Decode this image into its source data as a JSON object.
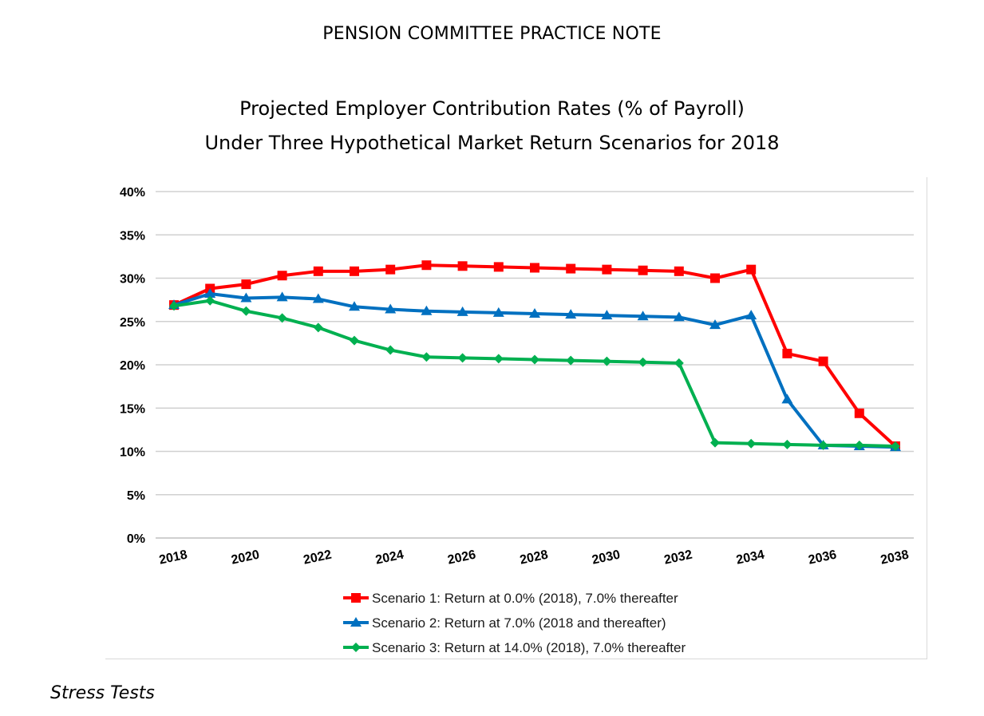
{
  "document": {
    "header": "PENSION COMMITTEE PRACTICE NOTE",
    "caption": "Stress Tests"
  },
  "chart_data": {
    "type": "line",
    "title_lines": [
      "Projected Employer Contribution Rates (% of Payroll)",
      "Under Three Hypothetical Market Return Scenarios for 2018"
    ],
    "xlabel": "",
    "ylabel": "",
    "x": [
      2018,
      2019,
      2020,
      2021,
      2022,
      2023,
      2024,
      2025,
      2026,
      2027,
      2028,
      2029,
      2030,
      2031,
      2032,
      2033,
      2034,
      2035,
      2036,
      2037,
      2038
    ],
    "xlim": [
      2018,
      2038
    ],
    "x_ticks": [
      2018,
      2020,
      2022,
      2024,
      2026,
      2028,
      2030,
      2032,
      2034,
      2036,
      2038
    ],
    "x_tick_labels": [
      "2018",
      "2020",
      "2022",
      "2024",
      "2026",
      "2028",
      "2030",
      "2032",
      "2034",
      "2036",
      "2038"
    ],
    "ylim": [
      0,
      40
    ],
    "y_ticks": [
      0,
      5,
      10,
      15,
      20,
      25,
      30,
      35,
      40
    ],
    "y_tick_labels": [
      "0%",
      "5%",
      "10%",
      "15%",
      "20%",
      "25%",
      "30%",
      "35%",
      "40%"
    ],
    "grid": "horizontal",
    "legend_position": "bottom-center",
    "series": [
      {
        "name": "Scenario 1: Return at 0.0% (2018), 7.0% thereafter",
        "color": "#ff0000",
        "marker": "square",
        "values": [
          26.9,
          28.8,
          29.3,
          30.3,
          30.8,
          30.8,
          31.0,
          31.5,
          31.4,
          31.3,
          31.2,
          31.1,
          31.0,
          30.9,
          30.8,
          30.0,
          31.0,
          21.3,
          20.4,
          14.4,
          10.6
        ]
      },
      {
        "name": "Scenario 2: Return at 7.0% (2018 and thereafter)",
        "color": "#0070c0",
        "marker": "triangle",
        "values": [
          26.9,
          28.2,
          27.7,
          27.8,
          27.6,
          26.7,
          26.4,
          26.2,
          26.1,
          26.0,
          25.9,
          25.8,
          25.7,
          25.6,
          25.5,
          24.6,
          25.7,
          16.0,
          10.7,
          10.6,
          10.5
        ]
      },
      {
        "name": "Scenario 3: Return at 14.0% (2018), 7.0% thereafter",
        "color": "#00b050",
        "marker": "diamond",
        "values": [
          26.8,
          27.4,
          26.2,
          25.4,
          24.3,
          22.8,
          21.7,
          20.9,
          20.8,
          20.7,
          20.6,
          20.5,
          20.4,
          20.3,
          20.2,
          11.0,
          10.9,
          10.8,
          10.7,
          10.7,
          10.6
        ]
      }
    ]
  }
}
